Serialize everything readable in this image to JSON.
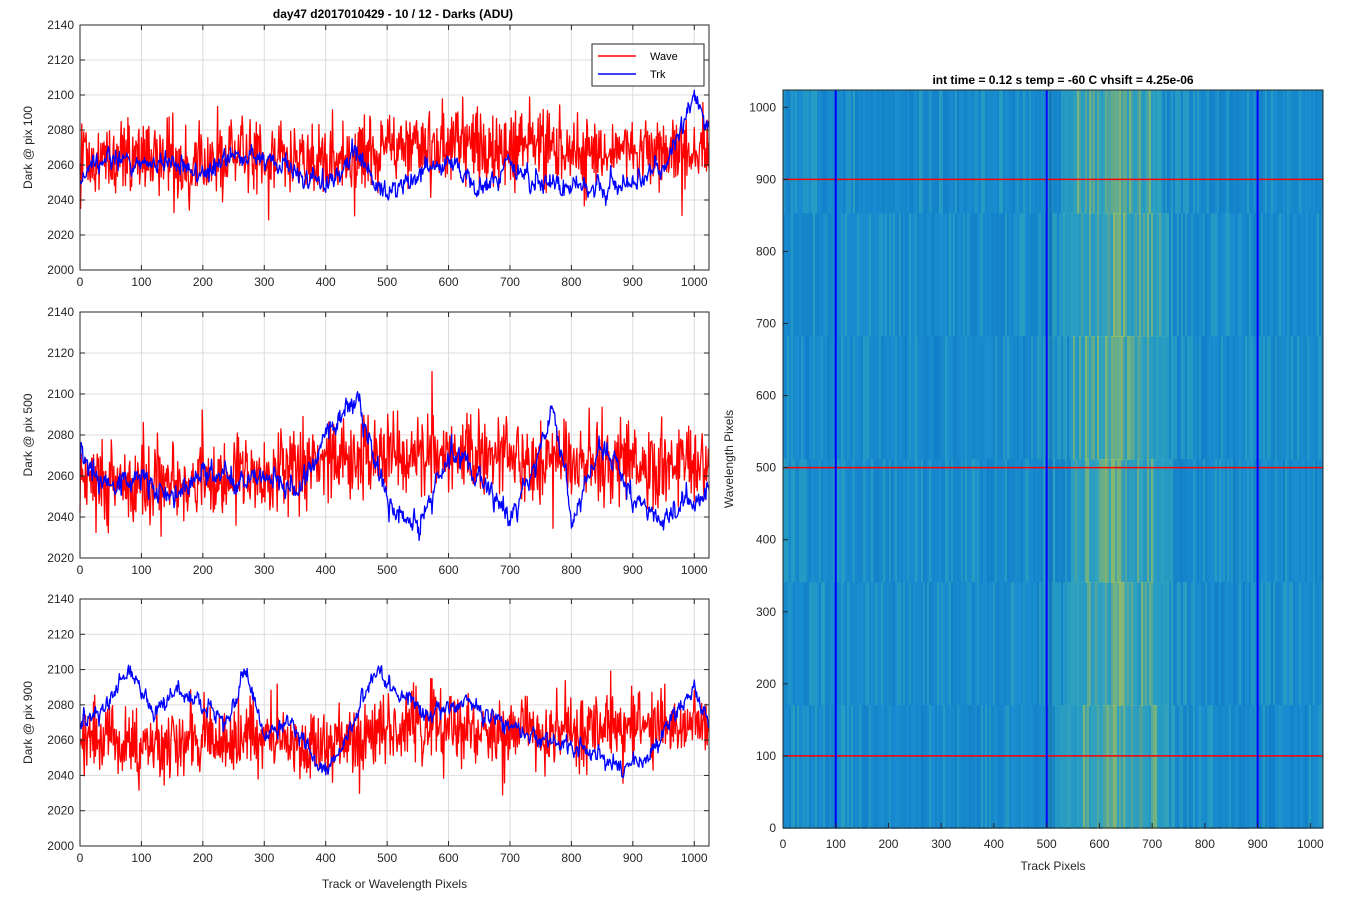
{
  "figure_title": "day47 d2017010429 - 10 / 12 - Darks (ADU)",
  "colors": {
    "wave": "#ff0000",
    "trk": "#0000ff",
    "grid": "#dcdcdc",
    "axis": "#262626",
    "heatmap_base": "#1a8fc8",
    "heatmap_hot": "#b4c84c"
  },
  "chart_data": [
    {
      "type": "line",
      "ylabel": "Dark @ pix 100",
      "xlabel": "",
      "xlim": [
        0,
        1024
      ],
      "ylim": [
        2000,
        2140
      ],
      "xticks": [
        0,
        100,
        200,
        300,
        400,
        500,
        600,
        700,
        800,
        900,
        1000
      ],
      "yticks": [
        2000,
        2020,
        2040,
        2060,
        2080,
        2100,
        2120,
        2140
      ],
      "grid": true,
      "legend": {
        "position": "top-right",
        "entries": [
          "Wave",
          "Trk"
        ]
      },
      "series": [
        {
          "name": "Wave",
          "color": "#ff0000",
          "mean": 2064,
          "noise": 15,
          "x": [
            0,
            100,
            200,
            300,
            400,
            500,
            600,
            700,
            800,
            900,
            1024
          ],
          "trend": [
            2065,
            2063,
            2062,
            2064,
            2060,
            2070,
            2072,
            2070,
            2068,
            2068,
            2066
          ]
        },
        {
          "name": "Trk",
          "color": "#0000ff",
          "mean": 2060,
          "noise": 6,
          "x": [
            0,
            50,
            100,
            150,
            200,
            250,
            300,
            350,
            400,
            450,
            500,
            550,
            600,
            650,
            700,
            750,
            800,
            850,
            900,
            950,
            1000,
            1024
          ],
          "trend": [
            2055,
            2065,
            2062,
            2060,
            2055,
            2065,
            2062,
            2058,
            2048,
            2066,
            2042,
            2055,
            2063,
            2043,
            2060,
            2050,
            2052,
            2045,
            2050,
            2058,
            2098,
            2080
          ]
        }
      ]
    },
    {
      "type": "line",
      "ylabel": "Dark @ pix 500",
      "xlabel": "",
      "xlim": [
        0,
        1024
      ],
      "ylim": [
        2020,
        2140
      ],
      "xticks": [
        0,
        100,
        200,
        300,
        400,
        500,
        600,
        700,
        800,
        900,
        1000
      ],
      "yticks": [
        2020,
        2040,
        2060,
        2080,
        2100,
        2120,
        2140
      ],
      "grid": true,
      "series": [
        {
          "name": "Wave",
          "color": "#ff0000",
          "mean": 2060,
          "noise": 14,
          "x": [
            0,
            100,
            200,
            300,
            400,
            500,
            600,
            700,
            800,
            900,
            1024
          ],
          "trend": [
            2058,
            2056,
            2058,
            2060,
            2068,
            2068,
            2070,
            2068,
            2065,
            2066,
            2064
          ]
        },
        {
          "name": "Trk",
          "color": "#0000ff",
          "mean": 2055,
          "noise": 6,
          "x": [
            0,
            50,
            100,
            150,
            200,
            250,
            300,
            350,
            400,
            450,
            500,
            550,
            600,
            650,
            700,
            750,
            770,
            800,
            850,
            900,
            950,
            1024
          ],
          "trend": [
            2070,
            2055,
            2060,
            2048,
            2062,
            2058,
            2060,
            2052,
            2080,
            2098,
            2048,
            2034,
            2072,
            2060,
            2038,
            2070,
            2095,
            2040,
            2075,
            2050,
            2040,
            2052
          ]
        }
      ]
    },
    {
      "type": "line",
      "ylabel": "Dark @ pix 900",
      "xlabel": "Track or Wavelength Pixels",
      "xlim": [
        0,
        1024
      ],
      "ylim": [
        2000,
        2140
      ],
      "xticks": [
        0,
        100,
        200,
        300,
        400,
        500,
        600,
        700,
        800,
        900,
        1000
      ],
      "yticks": [
        2000,
        2020,
        2040,
        2060,
        2080,
        2100,
        2120,
        2140
      ],
      "grid": true,
      "series": [
        {
          "name": "Wave",
          "color": "#ff0000",
          "mean": 2062,
          "noise": 14,
          "x": [
            0,
            100,
            200,
            300,
            400,
            500,
            600,
            700,
            800,
            900,
            1024
          ],
          "trend": [
            2062,
            2058,
            2060,
            2060,
            2056,
            2066,
            2068,
            2064,
            2064,
            2066,
            2068
          ]
        },
        {
          "name": "Trk",
          "color": "#0000ff",
          "mean": 2065,
          "noise": 5,
          "x": [
            0,
            40,
            80,
            120,
            160,
            200,
            240,
            270,
            300,
            340,
            380,
            400,
            440,
            480,
            520,
            560,
            600,
            640,
            680,
            720,
            760,
            800,
            840,
            880,
            920,
            960,
            1000,
            1024
          ],
          "trend": [
            2065,
            2080,
            2100,
            2075,
            2088,
            2080,
            2070,
            2098,
            2062,
            2070,
            2050,
            2042,
            2065,
            2100,
            2085,
            2078,
            2078,
            2080,
            2072,
            2065,
            2060,
            2058,
            2052,
            2044,
            2048,
            2070,
            2090,
            2070
          ]
        }
      ]
    },
    {
      "type": "heatmap",
      "title": "int time = 0.12 s    temp = -60 C    vhsift = 4.25e-06",
      "xlabel": "Track Pixels",
      "ylabel": "Wavelength Pixels",
      "xlim": [
        0,
        1024
      ],
      "ylim": [
        0,
        1024
      ],
      "xticks": [
        0,
        100,
        200,
        300,
        400,
        500,
        600,
        700,
        800,
        900,
        1000
      ],
      "yticks": [
        0,
        100,
        200,
        300,
        400,
        500,
        600,
        700,
        800,
        900,
        1000
      ],
      "marker_lines": {
        "vertical_x": [
          100,
          500,
          900
        ],
        "vertical_color": "#0000ff",
        "horizontal_y": [
          100,
          500,
          900
        ],
        "horizontal_color": "#ff0000"
      },
      "hot_region_x": [
        560,
        700
      ]
    }
  ]
}
